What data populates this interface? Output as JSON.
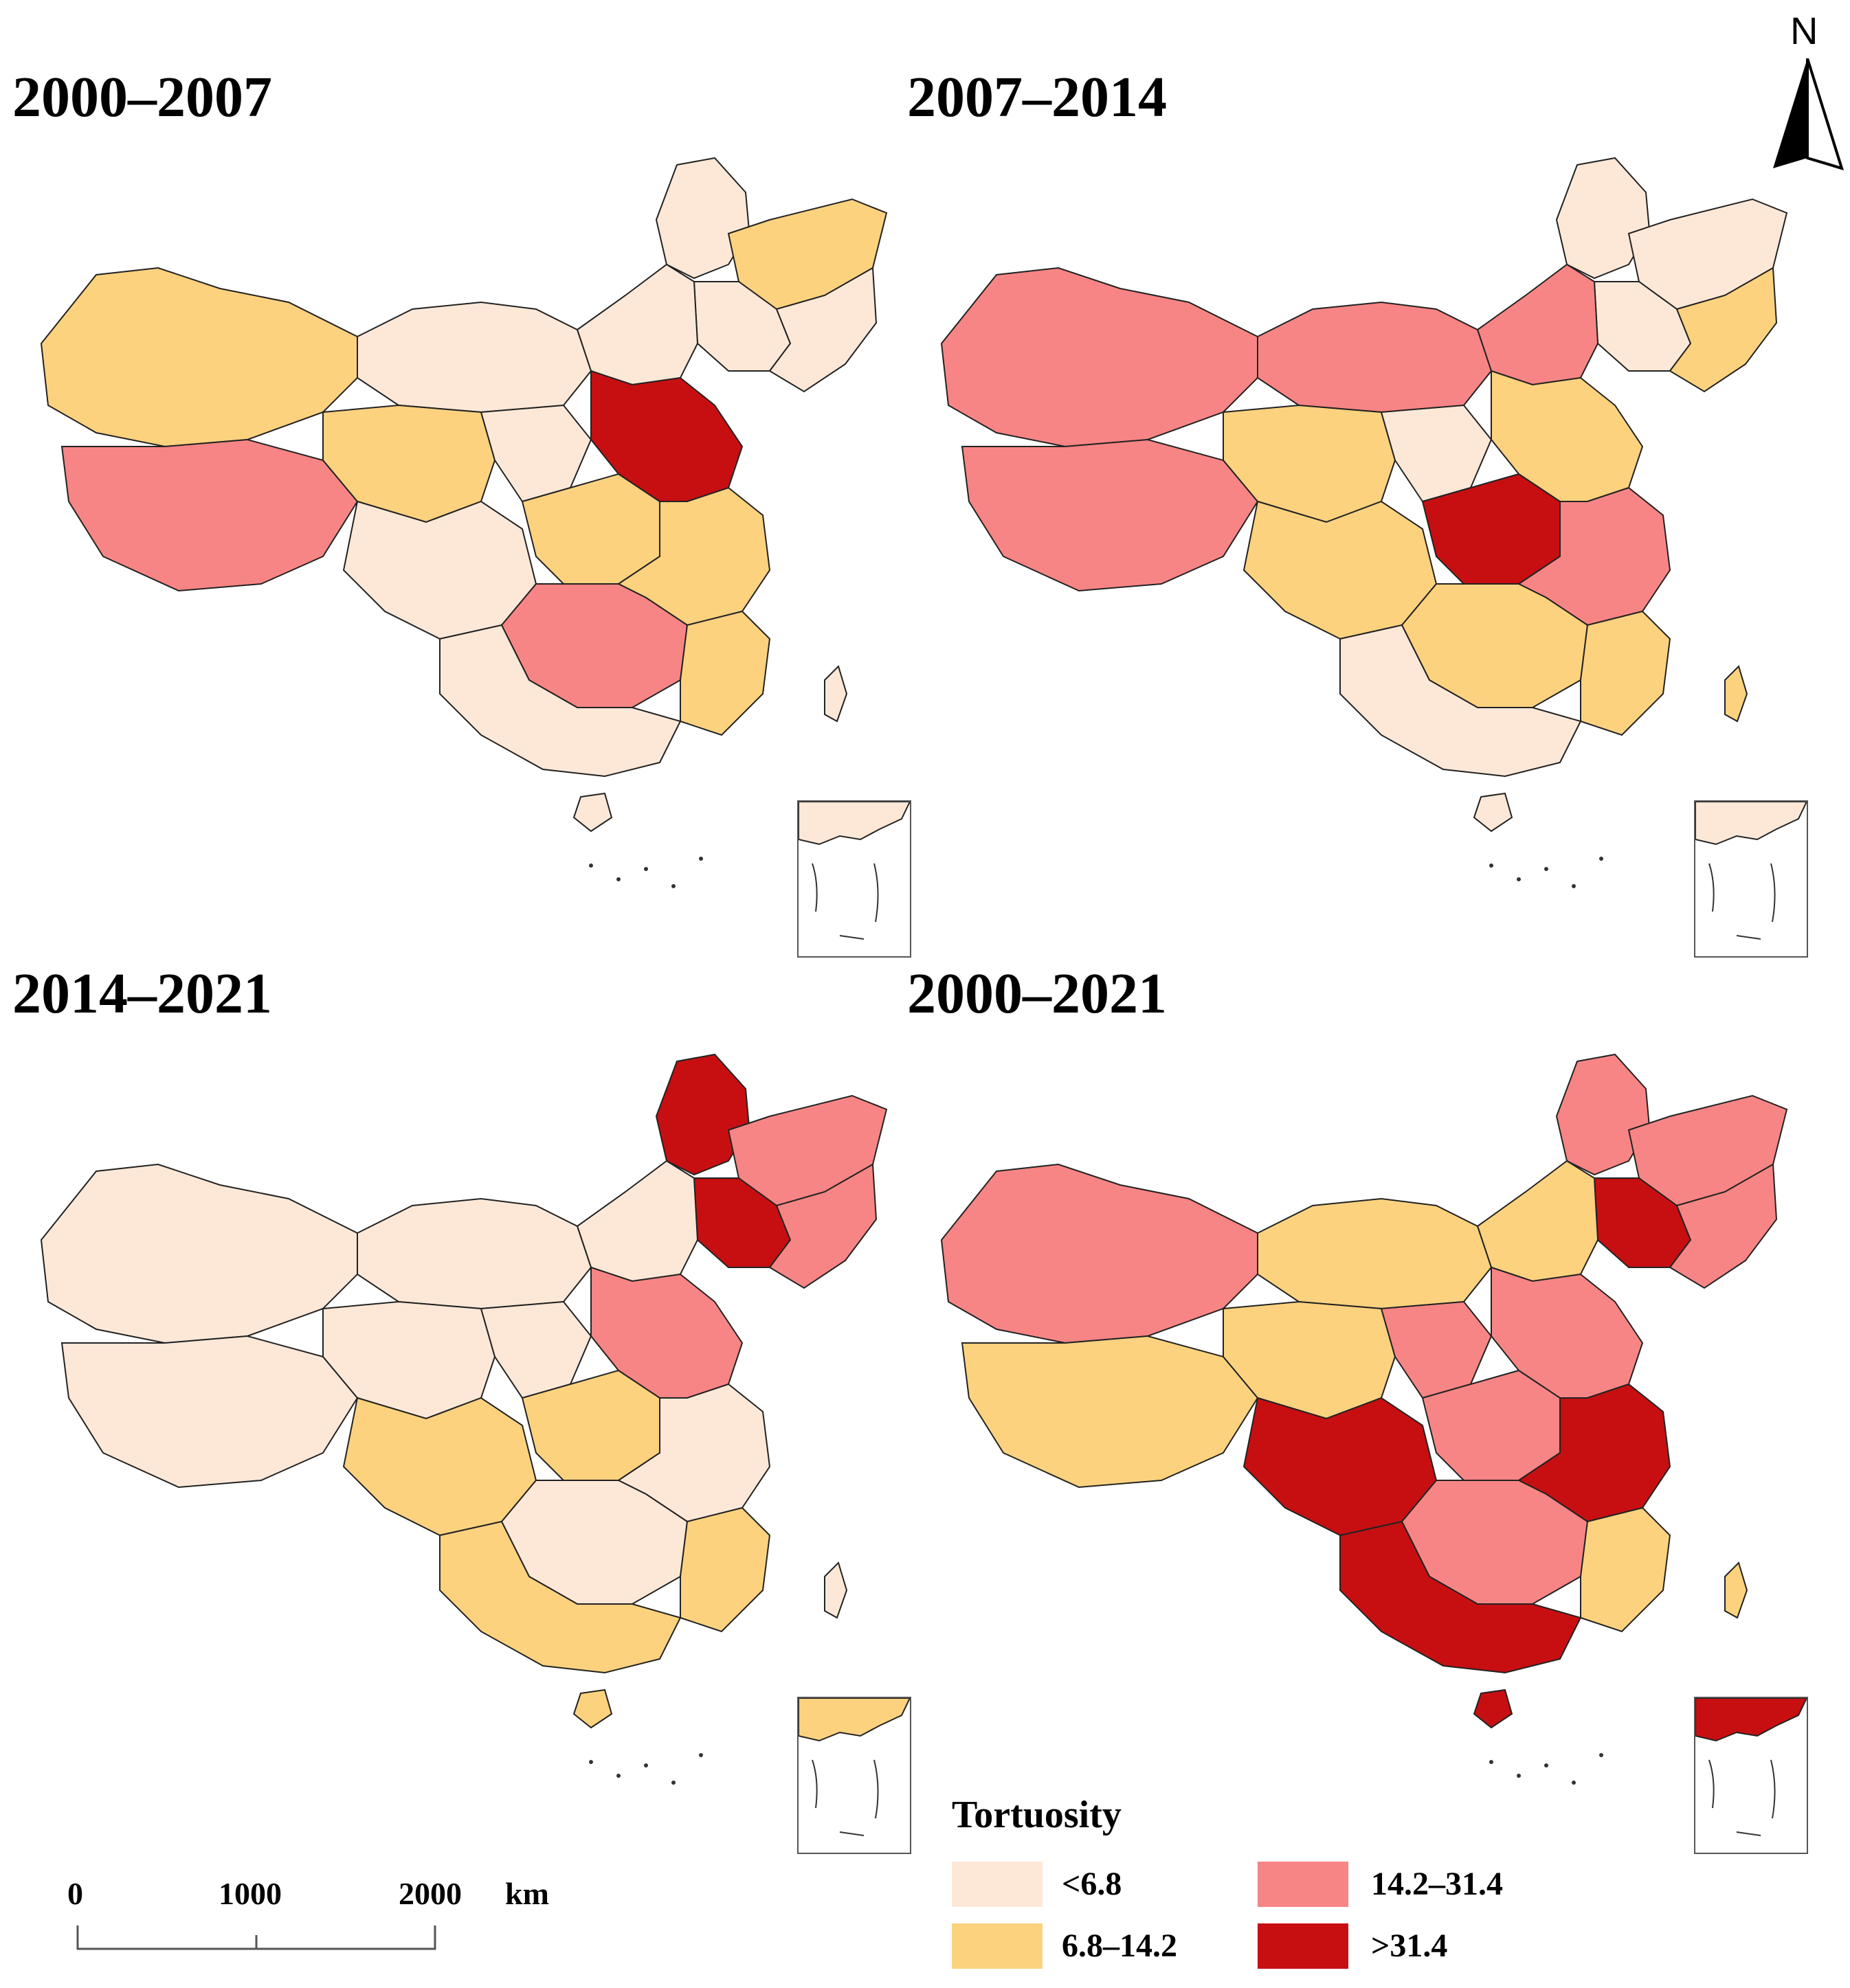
{
  "panels": [
    {
      "title": "2000–2007",
      "fills": [
        "c0",
        "c1",
        "c0",
        "c0",
        "c0",
        "c0",
        "c1",
        "c2",
        "c1",
        "c0",
        "c0",
        "c1",
        "c3",
        "c1",
        "c2",
        "c1",
        "c0"
      ]
    },
    {
      "title": "2007–2014",
      "fills": [
        "c0",
        "c0",
        "c0",
        "c1",
        "c2",
        "c2",
        "c2",
        "c2",
        "c1",
        "c0",
        "c1",
        "c3",
        "c1",
        "c2",
        "c1",
        "c1",
        "c0"
      ]
    },
    {
      "title": "2014–2021",
      "fills": [
        "c3",
        "c2",
        "c3",
        "c2",
        "c0",
        "c0",
        "c0",
        "c0",
        "c0",
        "c0",
        "c1",
        "c1",
        "c2",
        "c0",
        "c0",
        "c1",
        "c1"
      ]
    },
    {
      "title": "2000–2021",
      "fills": [
        "c2",
        "c2",
        "c3",
        "c2",
        "c1",
        "c1",
        "c2",
        "c1",
        "c1",
        "c2",
        "c3",
        "c2",
        "c2",
        "c3",
        "c2",
        "c1",
        "c3"
      ]
    }
  ],
  "north": {
    "label": "N"
  },
  "scalebar": {
    "ticks": [
      "0",
      "1000",
      "2000"
    ],
    "unit": "km"
  },
  "legend": {
    "title": "Tortuosity",
    "classes": [
      {
        "label": "<6.8",
        "color": "#fde8d8"
      },
      {
        "label": "6.8–14.2",
        "color": "#fcd27f"
      },
      {
        "label": "14.2–31.4",
        "color": "#f88585"
      },
      {
        "label": ">31.4",
        "color": "#c70f12"
      }
    ]
  },
  "colors": {
    "c0": "#fde8d8",
    "c1": "#fcd27f",
    "c2": "#f88585",
    "c3": "#c70f12",
    "border": "#222222"
  }
}
